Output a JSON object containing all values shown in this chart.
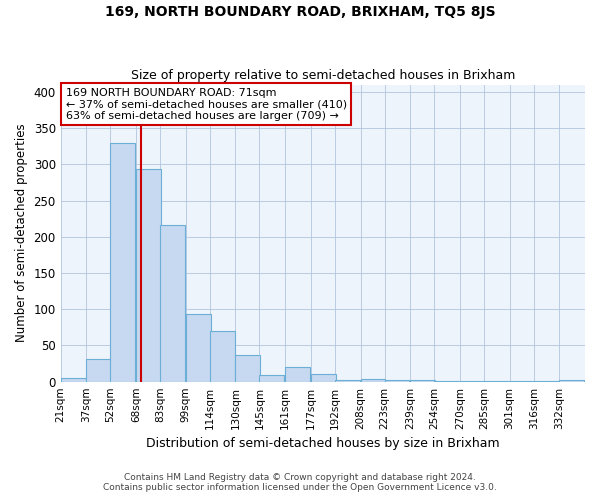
{
  "title": "169, NORTH BOUNDARY ROAD, BRIXHAM, TQ5 8JS",
  "subtitle": "Size of property relative to semi-detached houses in Brixham",
  "xlabel": "Distribution of semi-detached houses by size in Brixham",
  "ylabel": "Number of semi-detached properties",
  "footer1": "Contains HM Land Registry data © Crown copyright and database right 2024.",
  "footer2": "Contains public sector information licensed under the Open Government Licence v3.0.",
  "annotation_line1": "169 NORTH BOUNDARY ROAD: 71sqm",
  "annotation_line2": "← 37% of semi-detached houses are smaller (410)",
  "annotation_line3": "63% of semi-detached houses are larger (709) →",
  "property_size": 71,
  "bins": [
    21,
    37,
    52,
    68,
    83,
    99,
    114,
    130,
    145,
    161,
    177,
    192,
    208,
    223,
    239,
    254,
    270,
    285,
    301,
    316,
    332
  ],
  "counts": [
    5,
    31,
    330,
    293,
    216,
    93,
    70,
    37,
    9,
    20,
    10,
    3,
    4,
    3,
    3,
    1,
    1,
    1,
    1,
    1,
    2
  ],
  "bar_color": "#c6d9f0",
  "bar_edge_color": "#6baed6",
  "vline_color": "#cc0000",
  "annotation_box_color": "#cc0000",
  "ylim": [
    0,
    410
  ],
  "yticks": [
    0,
    50,
    100,
    150,
    200,
    250,
    300,
    350,
    400
  ],
  "plot_bg_color": "#eef4fb",
  "background_color": "#ffffff",
  "grid_color": "#b0c4de"
}
